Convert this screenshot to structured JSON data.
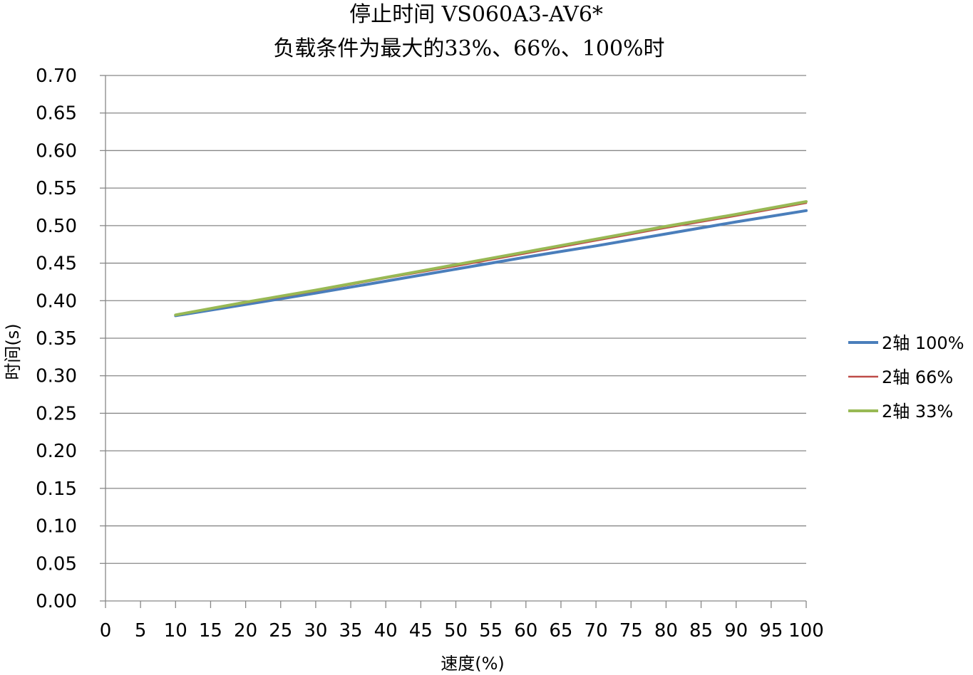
{
  "chart_data": {
    "type": "line",
    "title": "停止时间 VS060A3-AV6*",
    "subtitle": "负载条件为最大的33%、66%、100%时",
    "xlabel": "速度(%)",
    "ylabel": "时间(s)",
    "xlim": [
      0,
      100
    ],
    "ylim": [
      0,
      0.7
    ],
    "x_ticks": [
      0,
      5,
      10,
      15,
      20,
      25,
      30,
      35,
      40,
      45,
      50,
      55,
      60,
      65,
      70,
      75,
      80,
      85,
      90,
      95,
      100
    ],
    "y_ticks": [
      "0.00",
      "0.05",
      "0.10",
      "0.15",
      "0.20",
      "0.25",
      "0.30",
      "0.35",
      "0.40",
      "0.45",
      "0.50",
      "0.55",
      "0.60",
      "0.65",
      "0.70"
    ],
    "grid": "horizontal",
    "legend_position": "right",
    "series": [
      {
        "name": "2轴  100%",
        "color": "#4a7ebb",
        "x": [
          10,
          20,
          30,
          40,
          50,
          60,
          70,
          80,
          90,
          100
        ],
        "y": [
          0.38,
          0.395,
          0.41,
          0.426,
          0.442,
          0.458,
          0.473,
          0.489,
          0.505,
          0.52
        ]
      },
      {
        "name": "2轴  66%",
        "color": "#be4b48",
        "x": [
          10,
          20,
          30,
          40,
          50,
          60,
          70,
          80,
          90,
          100
        ],
        "y": [
          0.381,
          0.397,
          0.413,
          0.43,
          0.446,
          0.463,
          0.48,
          0.497,
          0.513,
          0.53
        ]
      },
      {
        "name": "2轴  33%",
        "color": "#98b954",
        "x": [
          10,
          20,
          30,
          40,
          50,
          60,
          70,
          80,
          90,
          100
        ],
        "y": [
          0.381,
          0.398,
          0.414,
          0.431,
          0.448,
          0.465,
          0.482,
          0.499,
          0.515,
          0.532
        ]
      }
    ]
  }
}
